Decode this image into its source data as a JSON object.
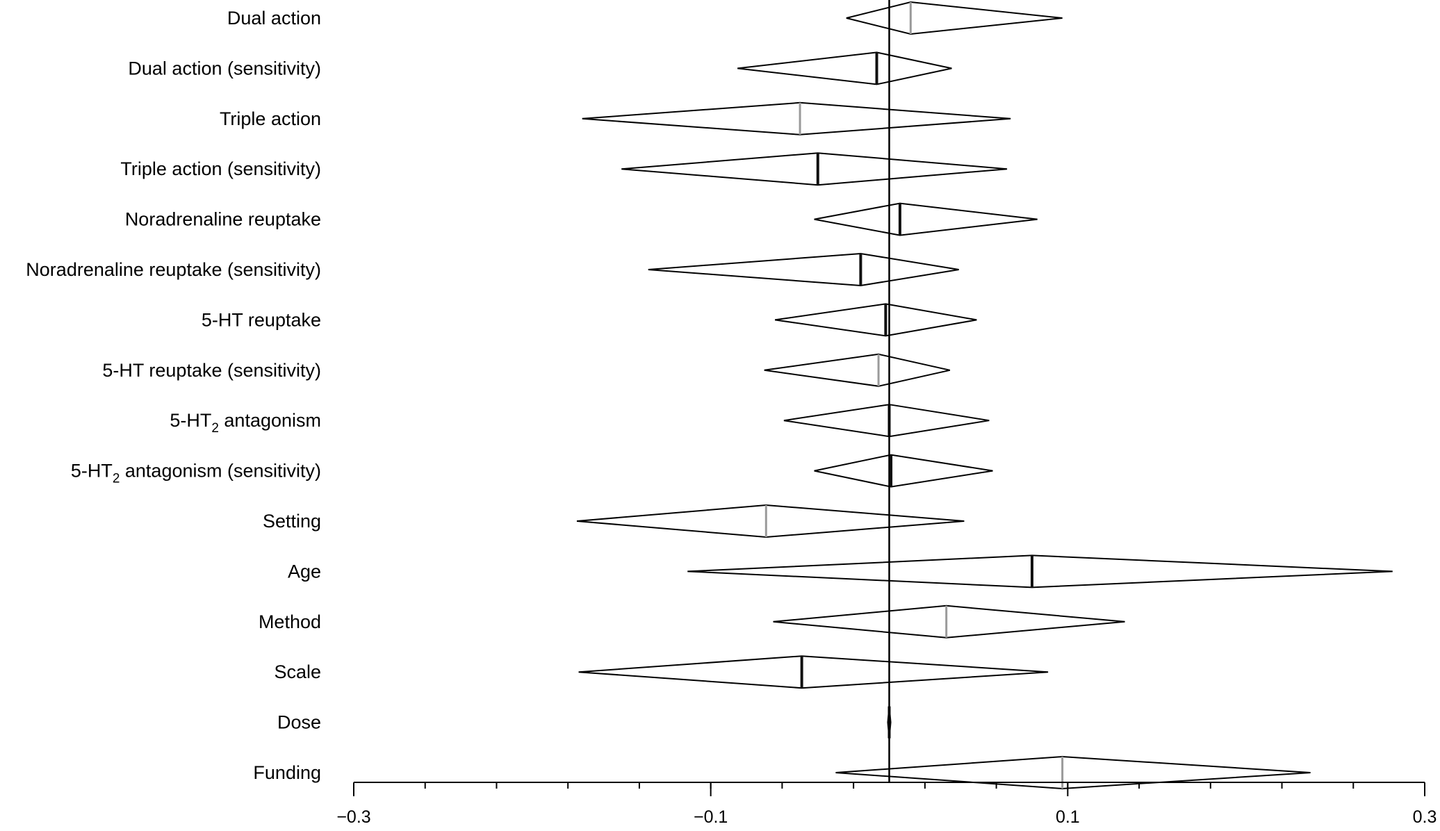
{
  "chart_data": {
    "type": "forest",
    "title": "",
    "xlabel": "",
    "ylabel": "",
    "xlim": [
      -0.3,
      0.3
    ],
    "grid": false,
    "reference_line": 0,
    "x_ticks": [
      {
        "value": -0.3,
        "label": "−0.3"
      },
      {
        "value": -0.1,
        "label": "−0.1"
      },
      {
        "value": 0.1,
        "label": "0.1"
      },
      {
        "value": 0.3,
        "label": "0.3"
      }
    ],
    "minor_tick_step": 0.04,
    "colors": {
      "outline": "#000000",
      "estimate_dark": "#111111",
      "estimate_light": "#9a9a9a"
    },
    "rows": [
      {
        "label": "Dual action",
        "low": -0.024,
        "estimate": 0.012,
        "high": 0.097,
        "marker": "light"
      },
      {
        "label": "Dual action (sensitivity)",
        "low": -0.085,
        "estimate": -0.007,
        "high": 0.035,
        "marker": "dark"
      },
      {
        "label": "Triple action",
        "low": -0.172,
        "estimate": -0.05,
        "high": 0.068,
        "marker": "light"
      },
      {
        "label": "Triple action (sensitivity)",
        "low": -0.15,
        "estimate": -0.04,
        "high": 0.066,
        "marker": "dark"
      },
      {
        "label": "Noradrenaline reuptake",
        "low": -0.042,
        "estimate": 0.006,
        "high": 0.083,
        "marker": "dark"
      },
      {
        "label": "Noradrenaline reuptake (sensitivity)",
        "low": -0.135,
        "estimate": -0.016,
        "high": 0.039,
        "marker": "dark"
      },
      {
        "label": "5-HT reuptake",
        "low": -0.064,
        "estimate": -0.002,
        "high": 0.049,
        "marker": "dark"
      },
      {
        "label": "5-HT reuptake (sensitivity)",
        "low": -0.07,
        "estimate": -0.006,
        "high": 0.034,
        "marker": "light"
      },
      {
        "label": "5-HT",
        "label_subscript": "2",
        "label_suffix": " antagonism",
        "low": -0.059,
        "estimate": 0.0,
        "high": 0.056,
        "marker": "dark"
      },
      {
        "label": "5-HT",
        "label_subscript": "2",
        "label_suffix": " antagonism (sensitivity)",
        "low": -0.042,
        "estimate": 0.001,
        "high": 0.058,
        "marker": "dark"
      },
      {
        "label": "Setting",
        "low": -0.175,
        "estimate": -0.069,
        "high": 0.042,
        "marker": "light"
      },
      {
        "label": "Age",
        "low": -0.113,
        "estimate": 0.08,
        "high": 0.282,
        "marker": "dark"
      },
      {
        "label": "Method",
        "low": -0.065,
        "estimate": 0.032,
        "high": 0.132,
        "marker": "light"
      },
      {
        "label": "Scale",
        "low": -0.174,
        "estimate": -0.049,
        "high": 0.089,
        "marker": "dark"
      },
      {
        "label": "Dose",
        "low": -0.0008,
        "estimate": 0.0,
        "high": 0.0008,
        "marker": "dark"
      },
      {
        "label": "Funding",
        "low": -0.03,
        "estimate": 0.097,
        "high": 0.236,
        "marker": "light"
      }
    ]
  }
}
